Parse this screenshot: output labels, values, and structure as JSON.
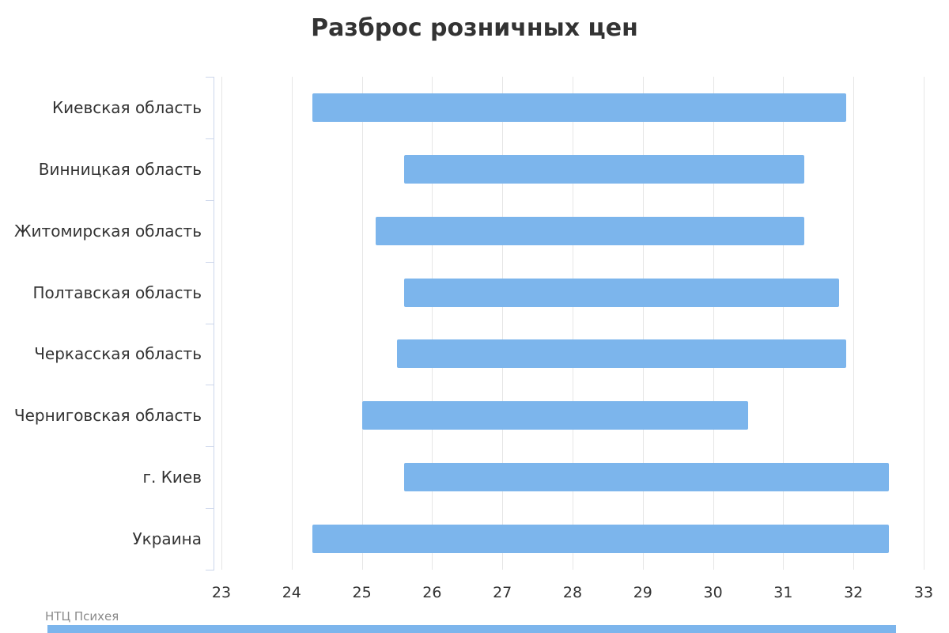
{
  "title": "Разброс розничных цен",
  "credit": "НТЦ Психея",
  "colors": {
    "bar": "#7cb5ec",
    "axis_line": "#ccd6eb",
    "gridline": "#e6e6e6",
    "text": "#333333",
    "credit_text": "#8a8a8a",
    "footer_strip": "#7cb5ec"
  },
  "chart_data": {
    "type": "bar",
    "subtype": "horizontal-range-bars",
    "title": "Разброс розничных цен",
    "xlabel": "",
    "ylabel": "",
    "xlim": [
      23,
      33
    ],
    "x_ticks": [
      23,
      24,
      25,
      26,
      27,
      28,
      29,
      30,
      31,
      32,
      33
    ],
    "grid": true,
    "legend": "none",
    "categories": [
      "Киевская область",
      "Винницкая область",
      "Житомирская область",
      "Полтавская область",
      "Черкасская область",
      "Черниговская область",
      "г. Киев",
      "Украина"
    ],
    "series": [
      {
        "name": "Разброс розничных цен",
        "ranges": [
          [
            24.3,
            31.9
          ],
          [
            25.6,
            31.3
          ],
          [
            25.2,
            31.3
          ],
          [
            25.6,
            31.8
          ],
          [
            25.5,
            31.9
          ],
          [
            25.0,
            30.5
          ],
          [
            25.6,
            32.5
          ],
          [
            24.3,
            32.5
          ]
        ]
      }
    ]
  }
}
